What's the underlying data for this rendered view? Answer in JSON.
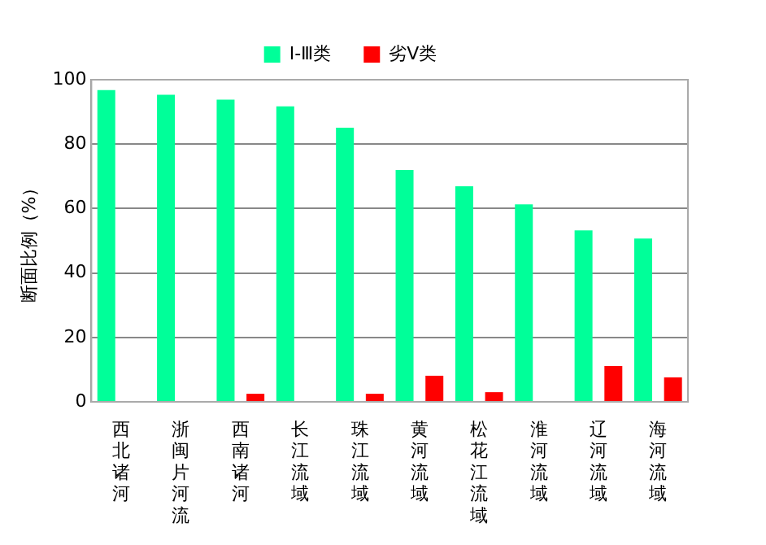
{
  "chart_data": {
    "type": "bar",
    "ylabel": "断面比例（%）",
    "categories": [
      "西北诸河",
      "浙闽片河流",
      "西南诸河",
      "长江流域",
      "珠江流域",
      "黄河流域",
      "松花江流域",
      "淮河流域",
      "辽河流域",
      "海河流域"
    ],
    "series": [
      {
        "name": "Ⅰ-Ⅲ类",
        "color": "#00ff99",
        "values": [
          96.8,
          95.3,
          93.8,
          91.7,
          85.1,
          72.0,
          66.9,
          61.3,
          53.2,
          50.7
        ]
      },
      {
        "name": "劣Ⅴ类",
        "color": "#ff0000",
        "values": [
          null,
          null,
          2.5,
          null,
          2.5,
          8.1,
          3.0,
          null,
          11.1,
          7.6
        ]
      }
    ],
    "ylim": [
      0,
      100
    ],
    "yticks": [
      0,
      20,
      40,
      60,
      80,
      100
    ],
    "grid": "y",
    "legend": "top"
  }
}
